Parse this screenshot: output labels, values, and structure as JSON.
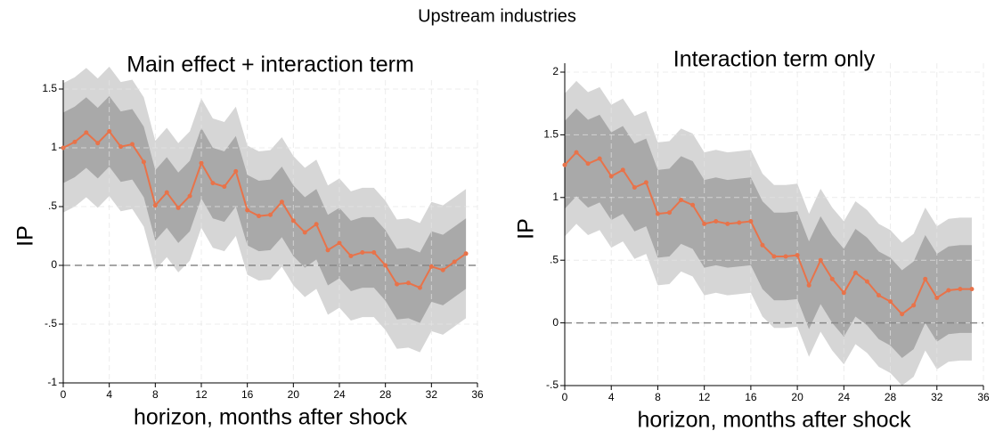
{
  "title": "Upstream industries",
  "chart_data": [
    {
      "type": "line",
      "title": "Main effect + interaction term",
      "xlabel": "horizon, months after shock",
      "ylabel": "IP",
      "x": [
        0,
        1,
        2,
        3,
        4,
        5,
        6,
        7,
        8,
        9,
        10,
        11,
        12,
        13,
        14,
        15,
        16,
        17,
        18,
        19,
        20,
        21,
        22,
        23,
        24,
        25,
        26,
        27,
        28,
        29,
        30,
        31,
        32,
        33,
        34,
        35
      ],
      "xlim": [
        0,
        36
      ],
      "xticks": [
        0,
        4,
        8,
        12,
        16,
        20,
        24,
        28,
        32,
        36
      ],
      "ylim": [
        -1,
        1.5
      ],
      "yticks": [
        -1,
        {
          "value": -0.5,
          "label": "-.5"
        },
        0,
        {
          "value": 0.5,
          "label": ".5"
        },
        1,
        1.5
      ],
      "grid": true,
      "reference_line": 0,
      "series": [
        {
          "color": "#e8734a",
          "values": [
            1.0,
            1.05,
            1.13,
            1.04,
            1.14,
            1.01,
            1.03,
            0.88,
            0.51,
            0.62,
            0.49,
            0.59,
            0.87,
            0.7,
            0.67,
            0.8,
            0.47,
            0.42,
            0.43,
            0.54,
            0.38,
            0.28,
            0.35,
            0.13,
            0.19,
            0.08,
            0.11,
            0.11,
            0.0,
            -0.16,
            -0.15,
            -0.19,
            -0.01,
            -0.04,
            0.03,
            0.1
          ]
        }
      ],
      "bands": [
        {
          "color": "#d6d6d6",
          "high": [
            1.55,
            1.6,
            1.68,
            1.59,
            1.69,
            1.56,
            1.58,
            1.43,
            1.06,
            1.17,
            1.04,
            1.14,
            1.42,
            1.25,
            1.22,
            1.35,
            1.02,
            0.97,
            0.98,
            1.09,
            0.93,
            0.83,
            0.9,
            0.68,
            0.74,
            0.63,
            0.66,
            0.66,
            0.55,
            0.39,
            0.4,
            0.36,
            0.54,
            0.51,
            0.58,
            0.65
          ],
          "low": [
            0.45,
            0.5,
            0.58,
            0.49,
            0.59,
            0.46,
            0.48,
            0.33,
            -0.04,
            0.07,
            -0.06,
            0.04,
            0.32,
            0.15,
            0.12,
            0.25,
            -0.08,
            -0.13,
            -0.12,
            -0.01,
            -0.17,
            -0.27,
            -0.2,
            -0.42,
            -0.36,
            -0.47,
            -0.44,
            -0.44,
            -0.55,
            -0.71,
            -0.7,
            -0.74,
            -0.56,
            -0.59,
            -0.52,
            -0.45
          ]
        },
        {
          "color": "#a9a9a9",
          "high": [
            1.3,
            1.35,
            1.43,
            1.34,
            1.44,
            1.31,
            1.33,
            1.18,
            0.81,
            0.92,
            0.79,
            0.89,
            1.17,
            1.0,
            0.97,
            1.1,
            0.77,
            0.72,
            0.73,
            0.84,
            0.68,
            0.58,
            0.65,
            0.43,
            0.49,
            0.38,
            0.41,
            0.41,
            0.3,
            0.14,
            0.15,
            0.11,
            0.29,
            0.26,
            0.33,
            0.4
          ],
          "low": [
            0.7,
            0.75,
            0.83,
            0.74,
            0.84,
            0.71,
            0.73,
            0.58,
            0.21,
            0.32,
            0.19,
            0.29,
            0.57,
            0.4,
            0.37,
            0.5,
            0.17,
            0.12,
            0.13,
            0.24,
            0.08,
            -0.02,
            0.05,
            -0.17,
            -0.11,
            -0.22,
            -0.19,
            -0.19,
            -0.3,
            -0.46,
            -0.45,
            -0.49,
            -0.31,
            -0.34,
            -0.27,
            -0.2
          ]
        }
      ]
    },
    {
      "type": "line",
      "title": "Interaction term only",
      "xlabel": "horizon, months after shock",
      "ylabel": "IP",
      "x": [
        0,
        1,
        2,
        3,
        4,
        5,
        6,
        7,
        8,
        9,
        10,
        11,
        12,
        13,
        14,
        15,
        16,
        17,
        18,
        19,
        20,
        21,
        22,
        23,
        24,
        25,
        26,
        27,
        28,
        29,
        30,
        31,
        32,
        33,
        34,
        35
      ],
      "xlim": [
        0,
        36
      ],
      "xticks": [
        0,
        4,
        8,
        12,
        16,
        20,
        24,
        28,
        32,
        36
      ],
      "ylim": [
        -0.5,
        2
      ],
      "yticks": [
        {
          "value": -0.5,
          "label": "-.5"
        },
        0,
        {
          "value": 0.5,
          "label": ".5"
        },
        1,
        1.5,
        2
      ],
      "grid": true,
      "reference_line": 0,
      "series": [
        {
          "color": "#e8734a",
          "values": [
            1.26,
            1.36,
            1.27,
            1.31,
            1.17,
            1.22,
            1.08,
            1.12,
            0.87,
            0.88,
            0.98,
            0.94,
            0.79,
            0.81,
            0.79,
            0.8,
            0.81,
            0.62,
            0.53,
            0.53,
            0.54,
            0.3,
            0.5,
            0.35,
            0.24,
            0.4,
            0.33,
            0.22,
            0.17,
            0.07,
            0.14,
            0.35,
            0.2,
            0.26,
            0.27,
            0.27
          ]
        }
      ],
      "bands": [
        {
          "color": "#d6d6d6",
          "high": [
            1.83,
            1.93,
            1.84,
            1.88,
            1.74,
            1.79,
            1.65,
            1.69,
            1.44,
            1.45,
            1.55,
            1.51,
            1.36,
            1.38,
            1.36,
            1.37,
            1.38,
            1.19,
            1.1,
            1.1,
            1.11,
            0.87,
            1.07,
            0.92,
            0.81,
            0.97,
            0.9,
            0.79,
            0.74,
            0.64,
            0.71,
            0.92,
            0.77,
            0.83,
            0.84,
            0.84
          ],
          "low": [
            0.69,
            0.79,
            0.7,
            0.74,
            0.6,
            0.65,
            0.51,
            0.55,
            0.3,
            0.31,
            0.41,
            0.37,
            0.22,
            0.24,
            0.22,
            0.23,
            0.24,
            0.05,
            -0.04,
            -0.04,
            -0.03,
            -0.27,
            -0.07,
            -0.22,
            -0.33,
            -0.17,
            -0.24,
            -0.35,
            -0.4,
            -0.5,
            -0.43,
            -0.22,
            -0.37,
            -0.31,
            -0.3,
            -0.3
          ]
        },
        {
          "color": "#a9a9a9",
          "high": [
            1.61,
            1.71,
            1.62,
            1.66,
            1.52,
            1.57,
            1.43,
            1.47,
            1.22,
            1.23,
            1.33,
            1.29,
            1.14,
            1.16,
            1.14,
            1.15,
            1.16,
            0.97,
            0.88,
            0.88,
            0.89,
            0.65,
            0.85,
            0.7,
            0.59,
            0.75,
            0.68,
            0.57,
            0.52,
            0.42,
            0.49,
            0.7,
            0.55,
            0.61,
            0.62,
            0.62
          ],
          "low": [
            0.91,
            1.01,
            0.92,
            0.96,
            0.82,
            0.87,
            0.73,
            0.77,
            0.52,
            0.53,
            0.63,
            0.59,
            0.44,
            0.46,
            0.44,
            0.45,
            0.46,
            0.27,
            0.18,
            0.18,
            0.19,
            -0.05,
            0.15,
            0.0,
            -0.11,
            0.05,
            -0.02,
            -0.13,
            -0.18,
            -0.28,
            -0.21,
            0.0,
            -0.15,
            -0.09,
            -0.08,
            -0.08
          ]
        }
      ]
    }
  ]
}
